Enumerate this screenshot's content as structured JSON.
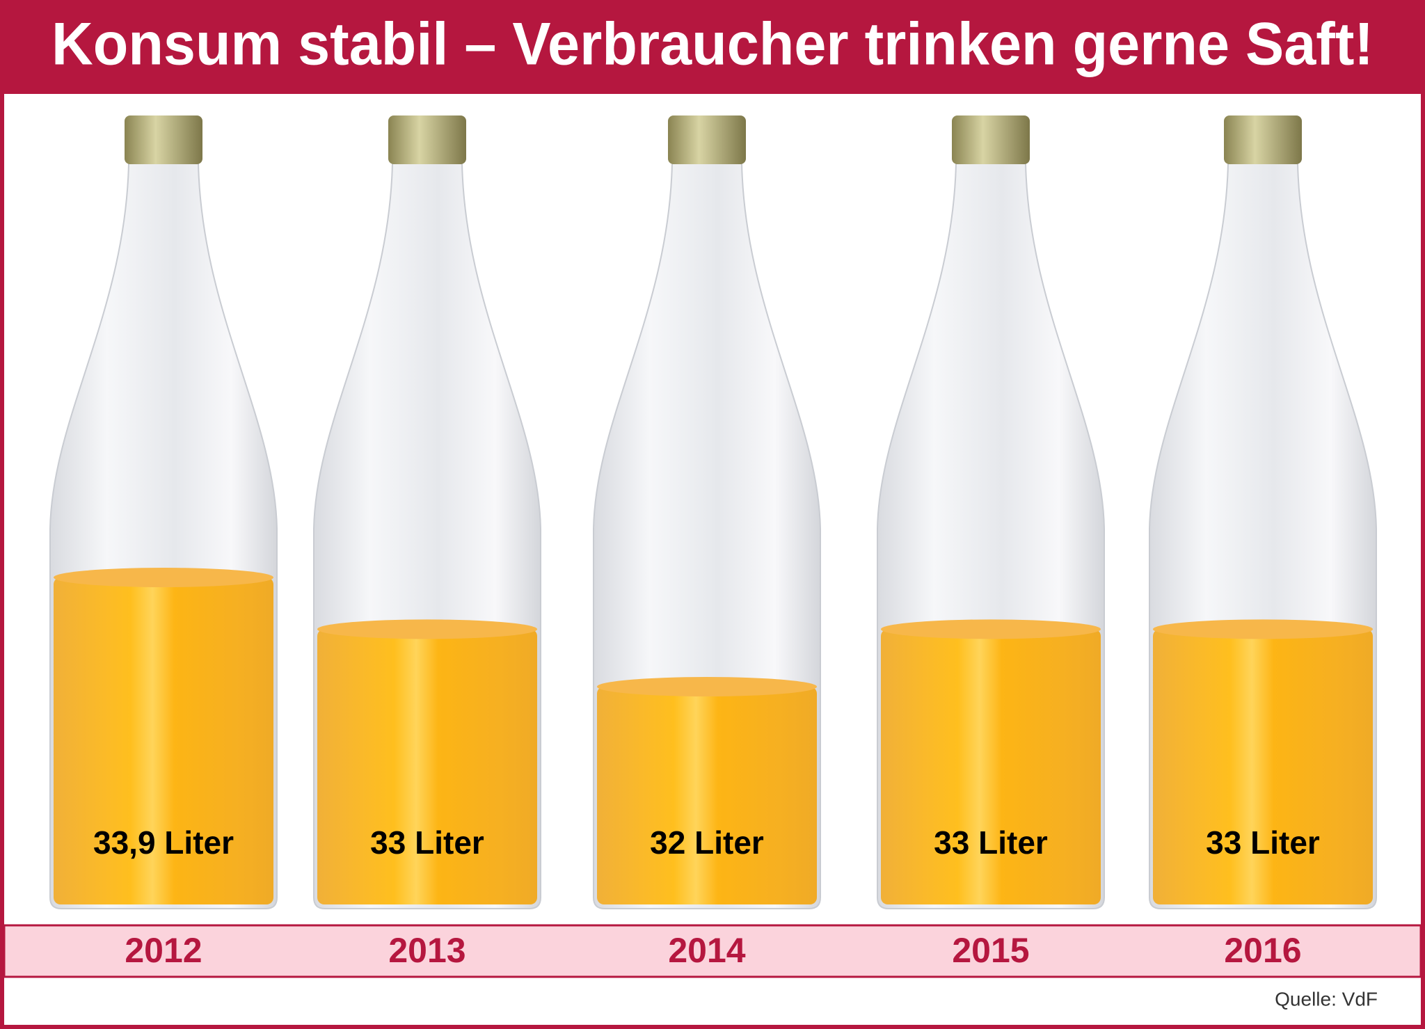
{
  "chart_data": {
    "type": "bottles",
    "title": "Konsum stabil – Verbraucher trinken gerne Saft!",
    "categories": [
      "2012",
      "2013",
      "2014",
      "2015",
      "2016"
    ],
    "values": [
      33.9,
      33,
      32,
      33,
      33
    ],
    "value_labels": [
      "33,9 Liter",
      "33 Liter",
      "32 Liter",
      "33 Liter",
      "33 Liter"
    ],
    "color": "#fbb316",
    "source": "Quelle: VdF"
  }
}
